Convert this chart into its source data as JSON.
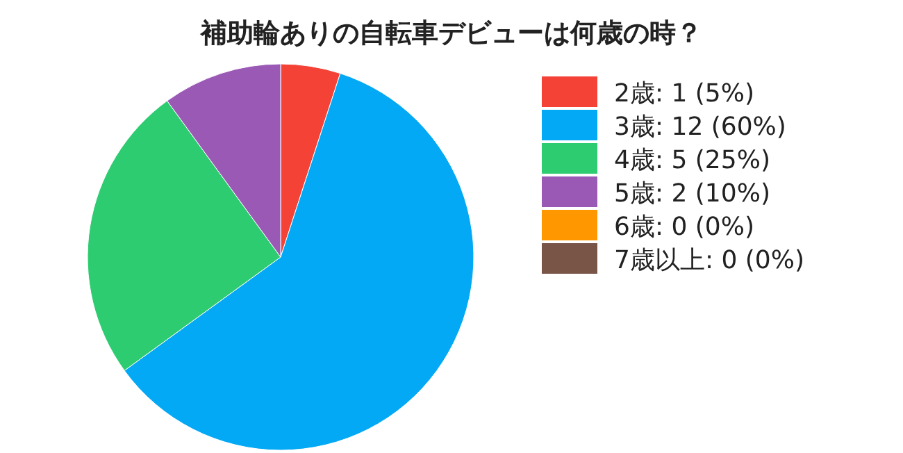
{
  "chart_data": {
    "type": "pie",
    "title": "補助輪ありの自転車デビューは何歳の時？",
    "categories": [
      "2歳",
      "3歳",
      "4歳",
      "5歳",
      "6歳",
      "7歳以上"
    ],
    "values": [
      1,
      12,
      5,
      2,
      0,
      0
    ],
    "value_labels": [
      "1 (5%)",
      "12 (60%)",
      "5 (25%)",
      "2 (10%)",
      "0 (0%)",
      "0 (0%)"
    ],
    "colors": [
      "#f44336",
      "#03a9f4",
      "#2ecc71",
      "#9b59b6",
      "#ff9800",
      "#795548"
    ],
    "legend": "right"
  }
}
